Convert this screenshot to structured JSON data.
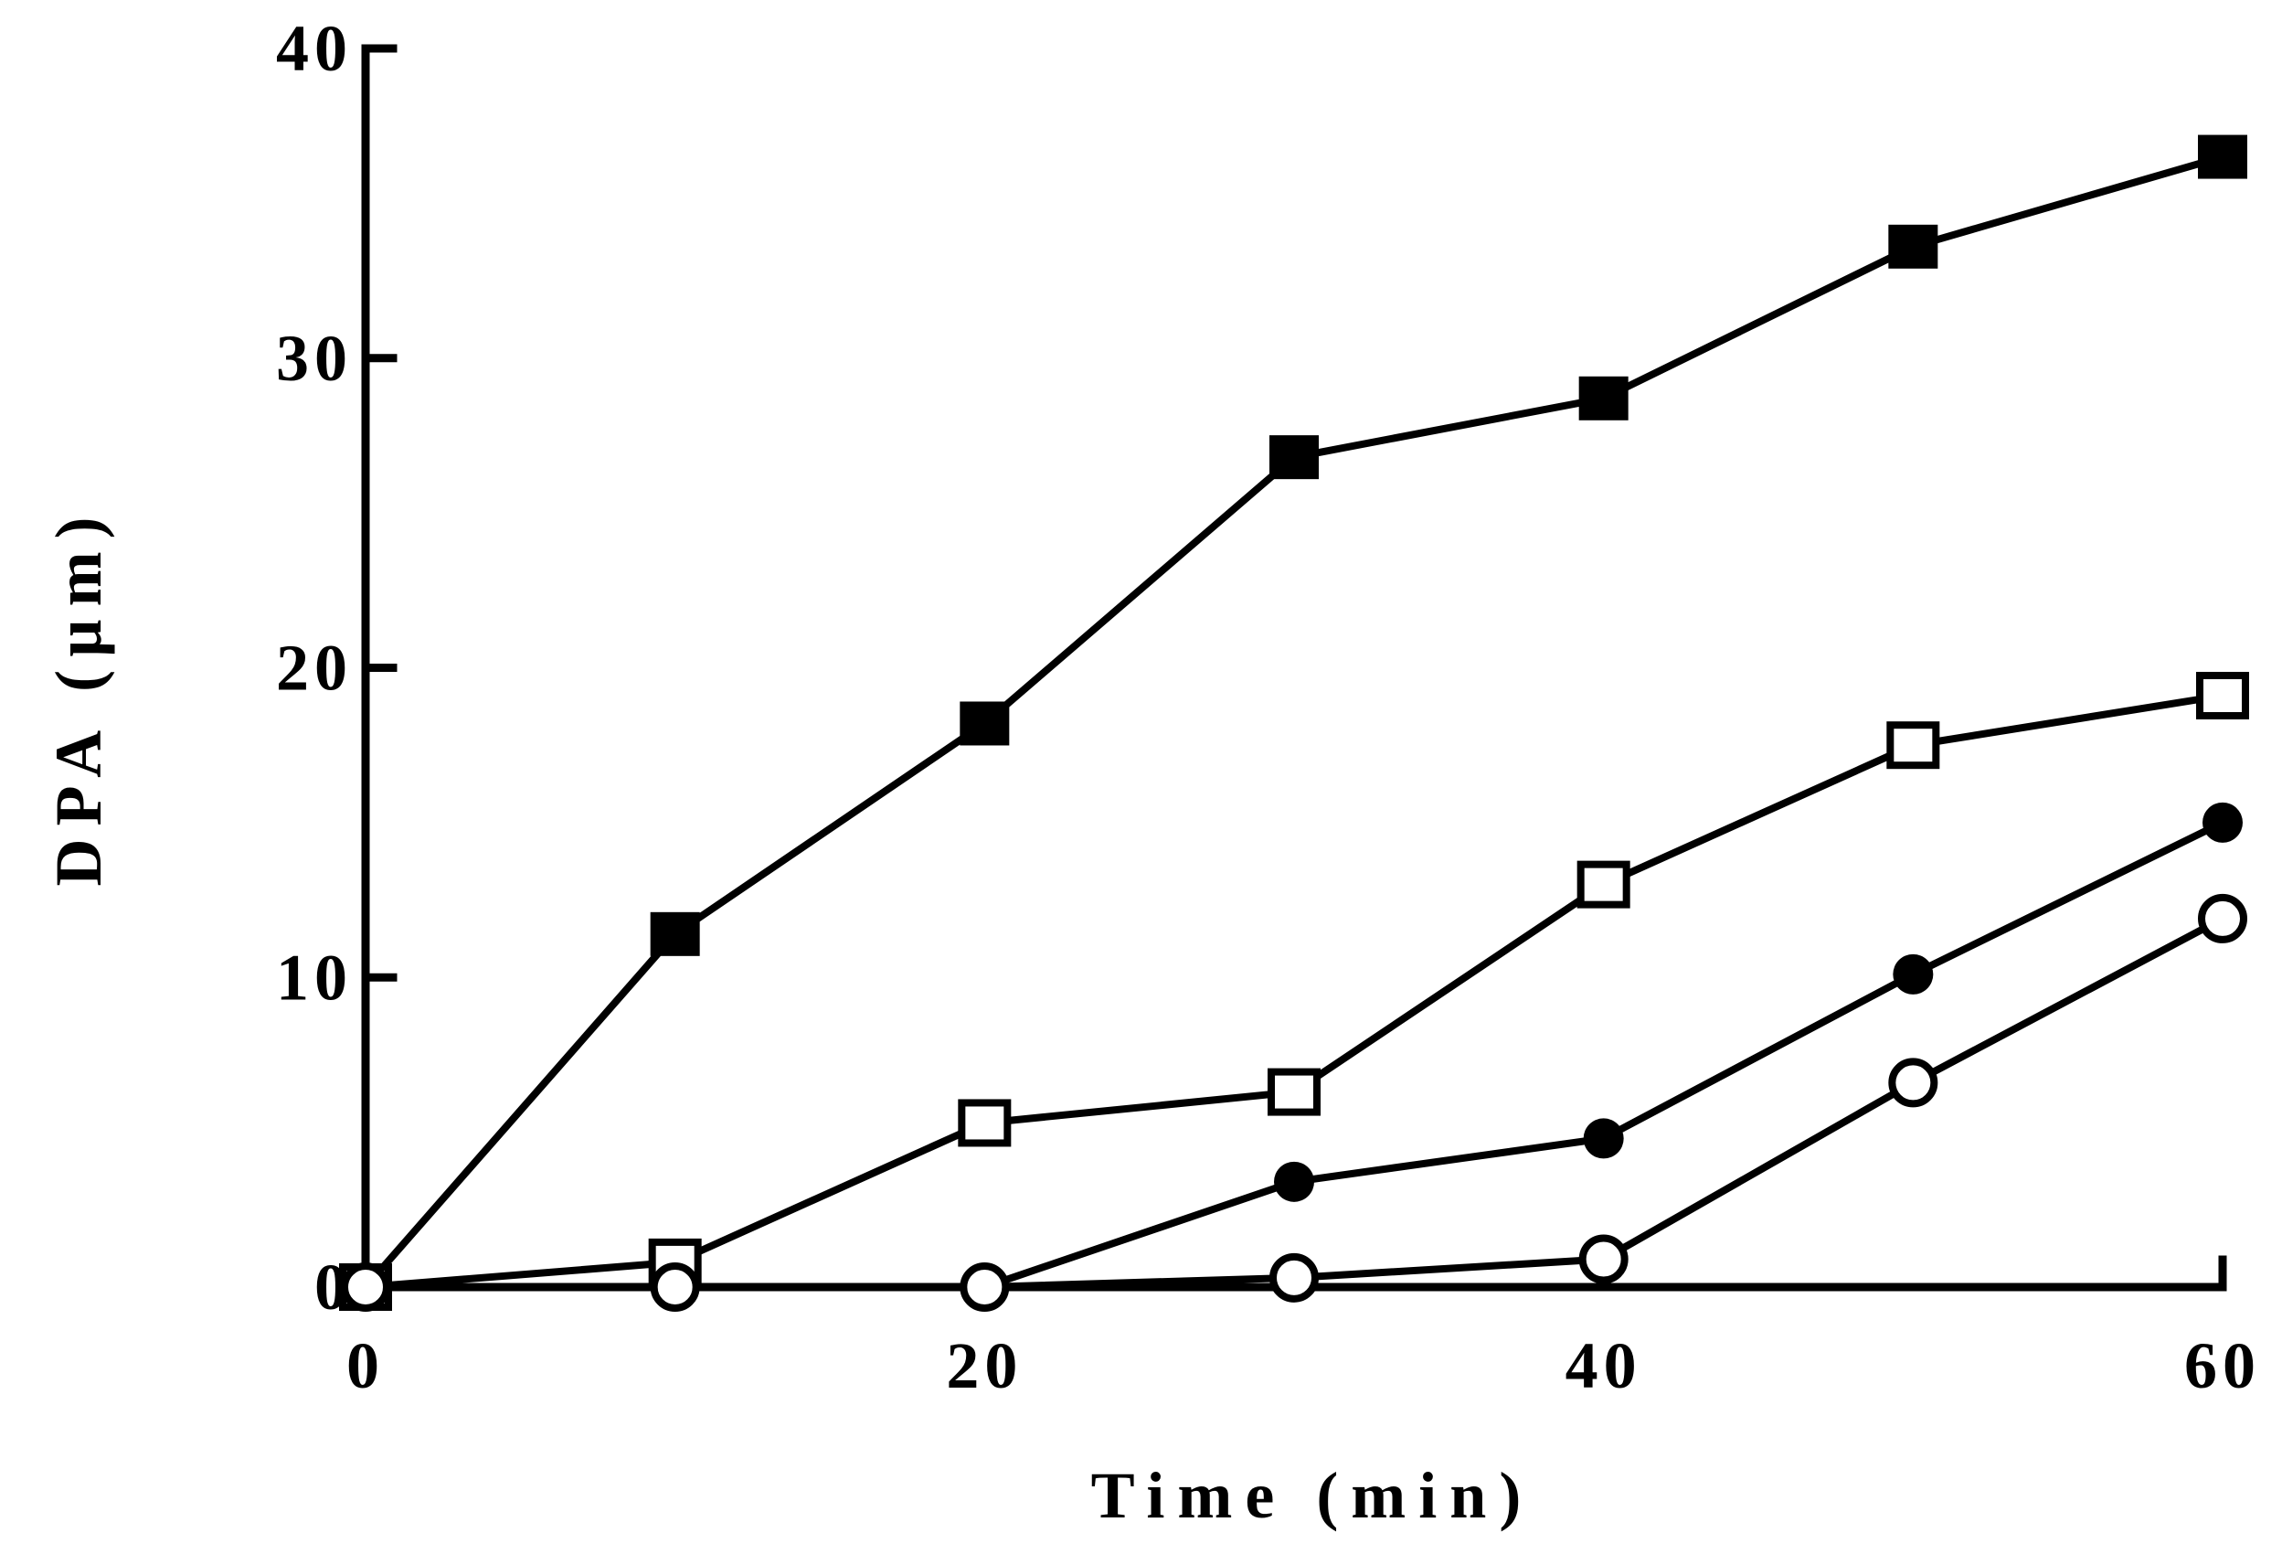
{
  "chart_data": {
    "type": "line",
    "title": "",
    "xlabel": "Time (min)",
    "ylabel": "DPA (µm)",
    "xlim": [
      0,
      60
    ],
    "ylim": [
      0,
      40
    ],
    "x_ticks": [
      "0",
      "20",
      "40",
      "60"
    ],
    "y_ticks": [
      "0",
      "10",
      "20",
      "30",
      "40"
    ],
    "grid": false,
    "legend": "none",
    "x": [
      0,
      10,
      20,
      30,
      40,
      50,
      60
    ],
    "series": [
      {
        "marker": "filled-square",
        "values": [
          0,
          11.4,
          18.2,
          26.8,
          28.7,
          33.6,
          36.5
        ]
      },
      {
        "marker": "open-square",
        "values": [
          0,
          0.8,
          5.3,
          6.3,
          13.0,
          17.5,
          19.1
        ]
      },
      {
        "marker": "filled-circle",
        "values": [
          0,
          0,
          0,
          3.4,
          4.8,
          10.1,
          15.0
        ]
      },
      {
        "marker": "open-circle",
        "values": [
          0,
          0,
          0,
          0.3,
          0.9,
          6.6,
          11.9
        ]
      }
    ]
  }
}
